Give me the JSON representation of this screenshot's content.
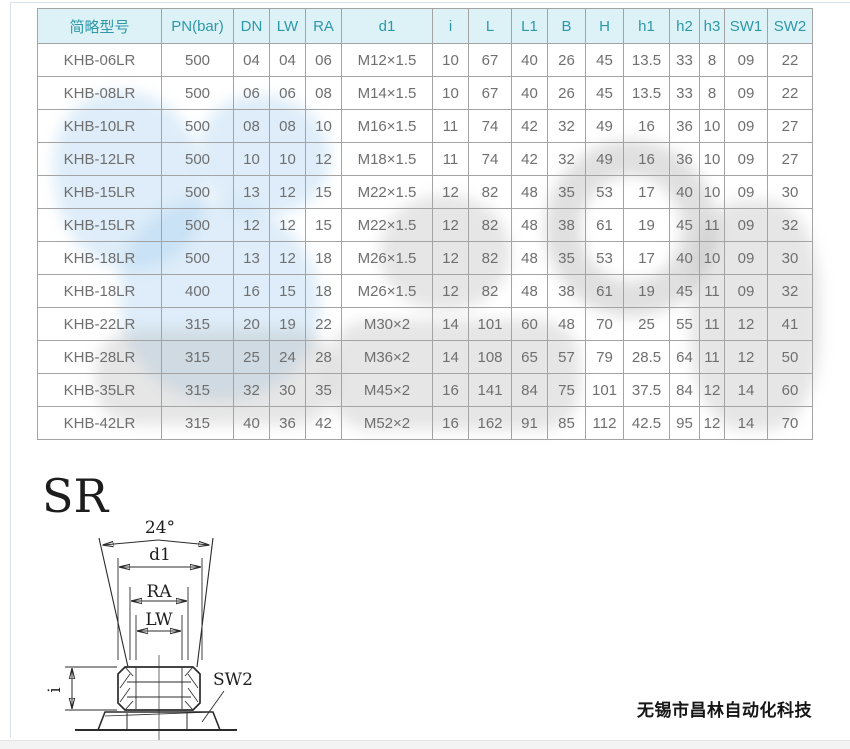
{
  "table": {
    "headers": [
      "简略型号",
      "PN(bar)",
      "DN",
      "LW",
      "RA",
      "d1",
      "i",
      "L",
      "L1",
      "B",
      "H",
      "h1",
      "h2",
      "h3",
      "SW1",
      "SW2"
    ],
    "rows": [
      [
        "KHB-06LR",
        "500",
        "04",
        "04",
        "06",
        "M12×1.5",
        "10",
        "67",
        "40",
        "26",
        "45",
        "13.5",
        "33",
        "8",
        "09",
        "22"
      ],
      [
        "KHB-08LR",
        "500",
        "06",
        "06",
        "08",
        "M14×1.5",
        "10",
        "67",
        "40",
        "26",
        "45",
        "13.5",
        "33",
        "8",
        "09",
        "22"
      ],
      [
        "KHB-10LR",
        "500",
        "08",
        "08",
        "10",
        "M16×1.5",
        "11",
        "74",
        "42",
        "32",
        "49",
        "16",
        "36",
        "10",
        "09",
        "27"
      ],
      [
        "KHB-12LR",
        "500",
        "10",
        "10",
        "12",
        "M18×1.5",
        "11",
        "74",
        "42",
        "32",
        "49",
        "16",
        "36",
        "10",
        "09",
        "27"
      ],
      [
        "KHB-15LR",
        "500",
        "13",
        "12",
        "15",
        "M22×1.5",
        "12",
        "82",
        "48",
        "35",
        "53",
        "17",
        "40",
        "10",
        "09",
        "30"
      ],
      [
        "KHB-15LR",
        "500",
        "12",
        "12",
        "15",
        "M22×1.5",
        "12",
        "82",
        "48",
        "38",
        "61",
        "19",
        "45",
        "11",
        "09",
        "32"
      ],
      [
        "KHB-18LR",
        "500",
        "13",
        "12",
        "18",
        "M26×1.5",
        "12",
        "82",
        "48",
        "35",
        "53",
        "17",
        "40",
        "10",
        "09",
        "30"
      ],
      [
        "KHB-18LR",
        "400",
        "16",
        "15",
        "18",
        "M26×1.5",
        "12",
        "82",
        "48",
        "38",
        "61",
        "19",
        "45",
        "11",
        "09",
        "32"
      ],
      [
        "KHB-22LR",
        "315",
        "20",
        "19",
        "22",
        "M30×2",
        "14",
        "101",
        "60",
        "48",
        "70",
        "25",
        "55",
        "11",
        "12",
        "41"
      ],
      [
        "KHB-28LR",
        "315",
        "25",
        "24",
        "28",
        "M36×2",
        "14",
        "108",
        "65",
        "57",
        "79",
        "28.5",
        "64",
        "11",
        "12",
        "50"
      ],
      [
        "KHB-35LR",
        "315",
        "32",
        "30",
        "35",
        "M45×2",
        "16",
        "141",
        "84",
        "75",
        "101",
        "37.5",
        "84",
        "12",
        "14",
        "60"
      ],
      [
        "KHB-42LR",
        "315",
        "40",
        "36",
        "42",
        "M52×2",
        "16",
        "162",
        "91",
        "85",
        "112",
        "42.5",
        "95",
        "12",
        "14",
        "70"
      ]
    ]
  },
  "diagram": {
    "title": "SR",
    "labels": {
      "angle": "24°",
      "d1": "d1",
      "ra": "RA",
      "lw": "LW",
      "i": "i",
      "sw2": "SW2"
    }
  },
  "footer": {
    "company": "无锡市昌林自动化科技"
  },
  "colors": {
    "header_bg": "#dcf2f6",
    "header_text": "#2e98a8",
    "table_border": "#a3a3a3",
    "body_text": "#6f6f6f",
    "diagram_ink": "#2b2b2b",
    "footer_text": "#161616"
  }
}
